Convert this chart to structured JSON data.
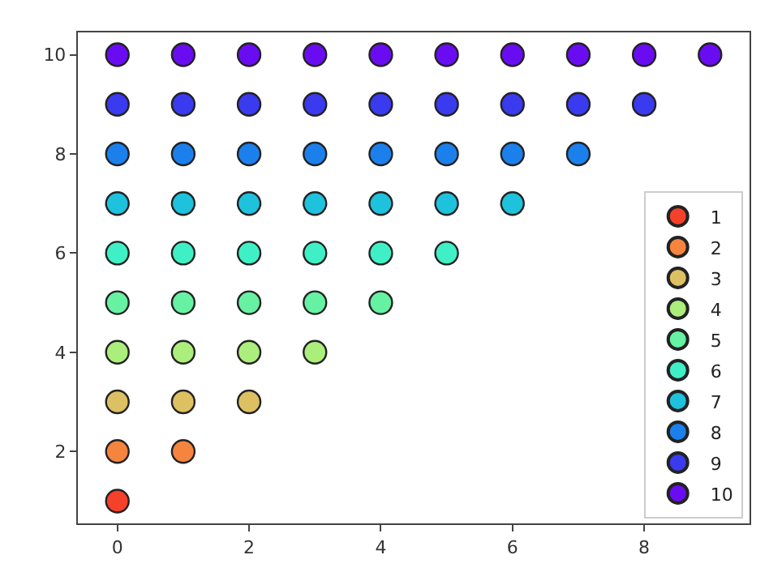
{
  "chart_data": {
    "type": "scatter",
    "marker": "circle",
    "legend": "bottom right",
    "grid": false,
    "xlim": [
      -0.6,
      9.6
    ],
    "ylim": [
      0.55,
      10.45
    ],
    "xticks": [
      0,
      2,
      4,
      6,
      8
    ],
    "yticks": [
      2,
      4,
      6,
      8,
      10
    ],
    "series": [
      {
        "name": "1",
        "color": "#f5402a",
        "x": [
          0
        ],
        "values": [
          1
        ]
      },
      {
        "name": "2",
        "color": "#f5843e",
        "x": [
          0,
          1
        ],
        "values": [
          2,
          2
        ]
      },
      {
        "name": "3",
        "color": "#dcc062",
        "x": [
          0,
          1,
          2
        ],
        "values": [
          3,
          3,
          3
        ]
      },
      {
        "name": "4",
        "color": "#acee7c",
        "x": [
          0,
          1,
          2,
          3
        ],
        "values": [
          4,
          4,
          4,
          4
        ]
      },
      {
        "name": "5",
        "color": "#66f2a2",
        "x": [
          0,
          1,
          2,
          3,
          4
        ],
        "values": [
          5,
          5,
          5,
          5,
          5
        ]
      },
      {
        "name": "6",
        "color": "#3ff0c6",
        "x": [
          0,
          1,
          2,
          3,
          4,
          5
        ],
        "values": [
          6,
          6,
          6,
          6,
          6,
          6
        ]
      },
      {
        "name": "7",
        "color": "#1ec2dc",
        "x": [
          0,
          1,
          2,
          3,
          4,
          5,
          6
        ],
        "values": [
          7,
          7,
          7,
          7,
          7,
          7,
          7
        ]
      },
      {
        "name": "8",
        "color": "#1c80ec",
        "x": [
          0,
          1,
          2,
          3,
          4,
          5,
          6,
          7
        ],
        "values": [
          8,
          8,
          8,
          8,
          8,
          8,
          8,
          8
        ]
      },
      {
        "name": "9",
        "color": "#3a3aee",
        "x": [
          0,
          1,
          2,
          3,
          4,
          5,
          6,
          7,
          8
        ],
        "values": [
          9,
          9,
          9,
          9,
          9,
          9,
          9,
          9,
          9
        ]
      },
      {
        "name": "10",
        "color": "#6a0cf2",
        "x": [
          0,
          1,
          2,
          3,
          4,
          5,
          6,
          7,
          8,
          9
        ],
        "values": [
          10,
          10,
          10,
          10,
          10,
          10,
          10,
          10,
          10,
          10
        ]
      }
    ]
  }
}
